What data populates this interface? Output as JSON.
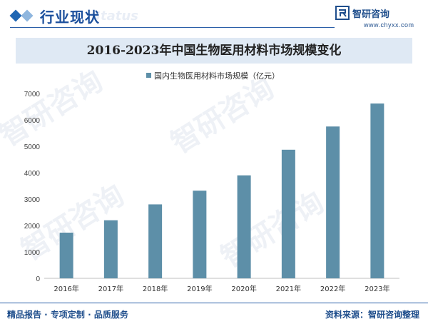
{
  "header": {
    "section_title": "行业现状",
    "ghost_word": "Status",
    "brand_name": "智研咨询",
    "brand_url": "www.chyxx.com"
  },
  "watermark_text": "智研咨询",
  "colors": {
    "bar": "#5d8fa8",
    "brand_blue": "#1f4e8c",
    "title_band": "#dfe9f4"
  },
  "chart_data": {
    "type": "bar",
    "title": "2016-2023年中国生物医用材料市场规模变化",
    "categories": [
      "2016年",
      "2017年",
      "2018年",
      "2019年",
      "2020年",
      "2021年",
      "2022年",
      "2023年"
    ],
    "series": [
      {
        "name": "国内生物医用材料市场规模（亿元）",
        "values": [
          1730,
          2200,
          2800,
          3320,
          3900,
          4870,
          5750,
          6620
        ]
      }
    ],
    "y_ticks": [
      "0",
      "1000",
      "2000",
      "3000",
      "4000",
      "5000",
      "6000",
      "7000"
    ],
    "ylim": [
      0,
      7000
    ],
    "grid": false,
    "legend_position": "top-center"
  },
  "footer": {
    "left": "精品报告 · 专项定制 · 品质服务",
    "right": "资料来源：智研咨询整理"
  }
}
